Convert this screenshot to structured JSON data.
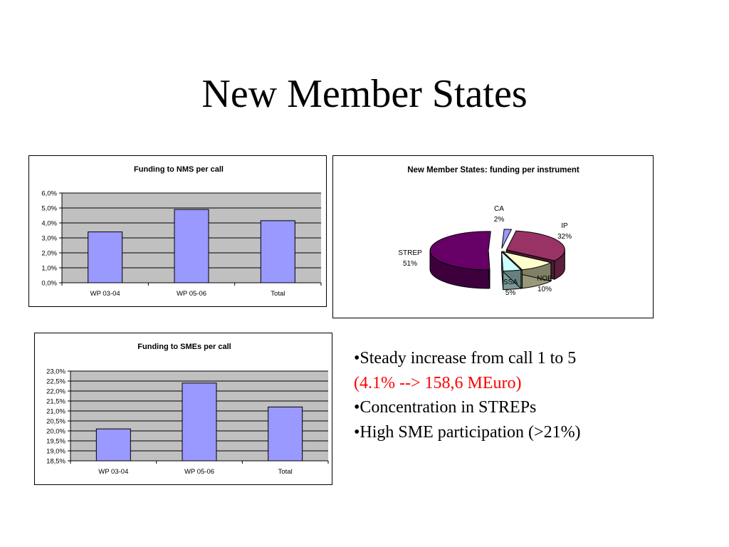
{
  "slide": {
    "title": "New Member States",
    "bullets": [
      "•Steady increase from call 1 to 5",
      "(4.1%  --> 158,6 MEuro)",
      "•Concentration in STREPs",
      "•High SME participation (>21%)"
    ],
    "highlight_color": "#ff0000"
  },
  "chart_data": [
    {
      "type": "bar",
      "title": "Funding to NMS per call",
      "categories": [
        "WP 03-04",
        "WP 05-06",
        "Total"
      ],
      "values": [
        3.4,
        4.9,
        4.15
      ],
      "ylim": [
        0,
        6
      ],
      "yticks": [
        "0,0%",
        "1,0%",
        "2,0%",
        "3,0%",
        "4,0%",
        "5,0%",
        "6,0%"
      ],
      "xlabel": "",
      "ylabel": "",
      "grid": true,
      "bar_color": "#9999ff",
      "plot_bg": "#c0c0c0"
    },
    {
      "type": "pie",
      "title": "New Member States: funding per instrument",
      "labels": [
        "CA",
        "IP",
        "NOE",
        "SSA",
        "STREP"
      ],
      "values": [
        2,
        32,
        10,
        5,
        51
      ],
      "value_labels": [
        "2%",
        "32%",
        "10%",
        "5%",
        "51%"
      ],
      "colors": [
        "#9999ff",
        "#993366",
        "#ffffcc",
        "#ccffff",
        "#660066"
      ]
    },
    {
      "type": "bar",
      "title": "Funding to SMEs per call",
      "categories": [
        "WP 03-04",
        "WP 05-06",
        "Total"
      ],
      "values": [
        20.1,
        22.4,
        21.2
      ],
      "ylim": [
        18.5,
        23
      ],
      "yticks": [
        "18,5%",
        "19,0%",
        "19,5%",
        "20,0%",
        "20,5%",
        "21,0%",
        "21,5%",
        "22,0%",
        "22,5%",
        "23,0%"
      ],
      "xlabel": "",
      "ylabel": "",
      "grid": true,
      "bar_color": "#9999ff",
      "plot_bg": "#c0c0c0"
    }
  ]
}
